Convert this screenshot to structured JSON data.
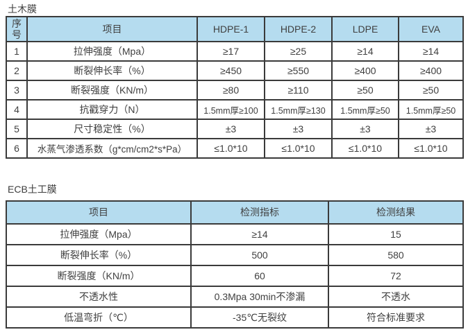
{
  "theme": {
    "header_bg": "#b5dcef",
    "border_color": "#3a3a3a",
    "text_color": "#404040",
    "page_bg": "#ffffff"
  },
  "membrane_table": {
    "title": "土木膜",
    "headers": [
      "序号",
      "项目",
      "HDPE-1",
      "HDPE-2",
      "LDPE",
      "EVA"
    ],
    "rows": [
      [
        "1",
        "拉伸强度（Mpa）",
        "≥17",
        "≥25",
        "≥14",
        "≥14"
      ],
      [
        "2",
        "断裂伸长率（%）",
        "≥450",
        "≥550",
        "≥400",
        "≥400"
      ],
      [
        "3",
        "断裂强度（KN/m）",
        "≥80",
        "≥110",
        "≥50",
        "≥50"
      ],
      [
        "4",
        "抗戳穿力（N）",
        "1.5mm厚≥100",
        "1.5mm厚≥130",
        "1.5mm厚≥50",
        "1.5mm厚≥50"
      ],
      [
        "5",
        "尺寸稳定性（%）",
        "±3",
        "±3",
        "±3",
        "±3"
      ],
      [
        "6",
        "水蒸气渗透系数（g*cm/cm2*s*Pa）",
        "≤1.0*10",
        "≤1.0*10",
        "≤1.0*10",
        "≤1.0*10"
      ]
    ]
  },
  "ecb_table": {
    "title": "ECB土工膜",
    "headers": [
      "项目",
      "检测指标",
      "检测结果"
    ],
    "rows": [
      [
        "拉伸强度（Mpa）",
        "≥14",
        "15"
      ],
      [
        "断裂伸长率（%）",
        "500",
        "580"
      ],
      [
        "断裂强度（KN/m）",
        "60",
        "72"
      ],
      [
        "不透水性",
        "0.3Mpa 30min不渗漏",
        "不透水"
      ],
      [
        "低温弯折（℃）",
        "-35℃无裂纹",
        "符合标准要求"
      ]
    ]
  }
}
